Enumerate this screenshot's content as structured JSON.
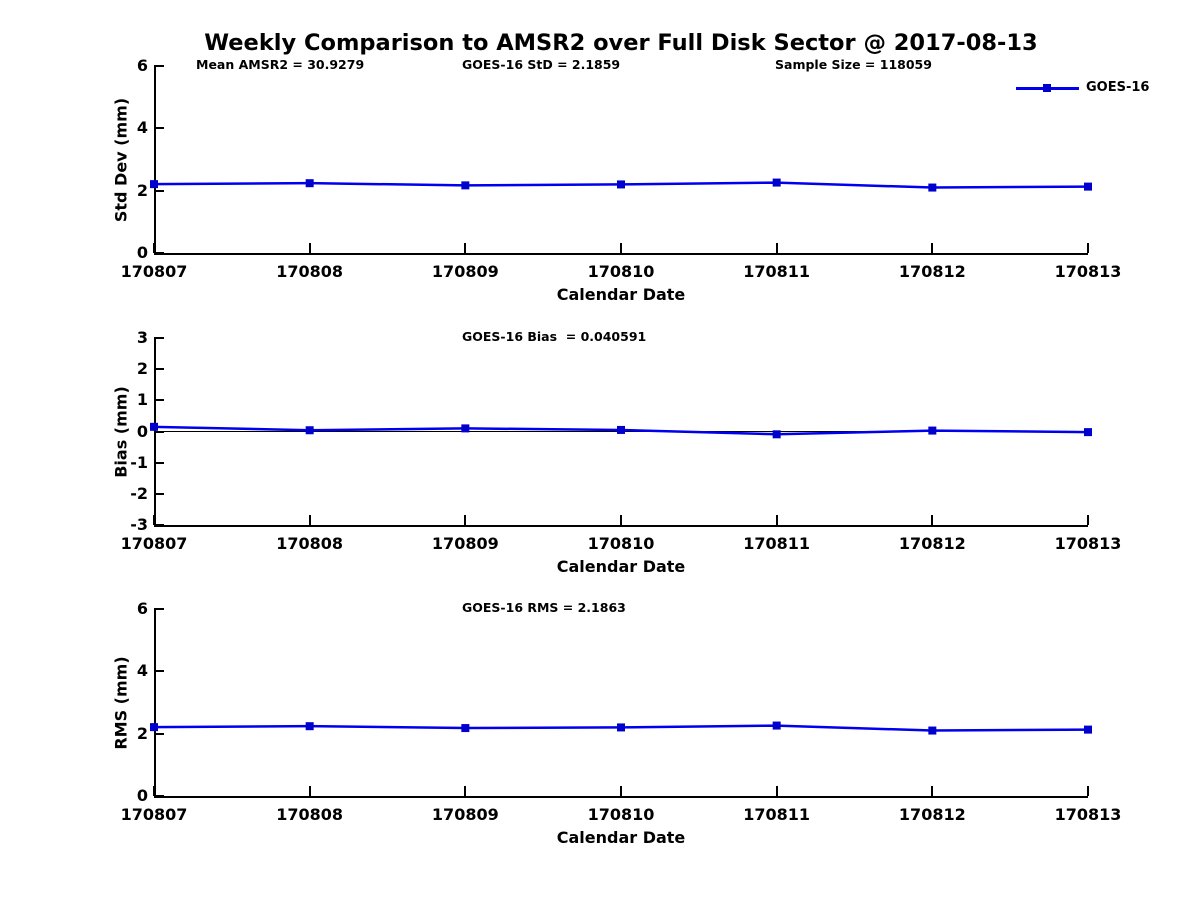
{
  "title": "Weekly Comparison to AMSR2 over Full Disk Sector @ 2017-08-13",
  "colors": {
    "line": "#0000ee",
    "marker": "#0000cc",
    "axis": "#000000",
    "zero_line": "#000000",
    "text": "#000000"
  },
  "chart_data": [
    {
      "id": "std-dev",
      "type": "line",
      "categories": [
        "170807",
        "170808",
        "170809",
        "170810",
        "170811",
        "170812",
        "170813"
      ],
      "series": [
        {
          "name": "GOES-16",
          "values": [
            2.21,
            2.24,
            2.17,
            2.2,
            2.26,
            2.1,
            2.13
          ]
        }
      ],
      "xlabel": "Calendar Date",
      "ylabel": "Std Dev (mm)",
      "ylim": [
        0,
        6
      ],
      "yticks": [
        "0",
        "2",
        "4",
        "6"
      ],
      "grid": false,
      "zero_line": false,
      "legend": {
        "label": "GOES-16",
        "position": "top-right"
      },
      "annotations": [
        {
          "text": "Mean AMSR2 = 30.9279",
          "col": 0
        },
        {
          "text": "GOES-16 StD = 2.1859",
          "col": 1
        },
        {
          "text": "Sample Size = 118059",
          "col": 2
        }
      ]
    },
    {
      "id": "bias",
      "type": "line",
      "categories": [
        "170807",
        "170808",
        "170809",
        "170810",
        "170811",
        "170812",
        "170813"
      ],
      "series": [
        {
          "name": "GOES-16",
          "values": [
            0.15,
            0.04,
            0.1,
            0.05,
            -0.09,
            0.03,
            -0.02
          ]
        }
      ],
      "xlabel": "Calendar Date",
      "ylabel": "Bias (mm)",
      "ylim": [
        -3,
        3
      ],
      "yticks": [
        "-3",
        "-2",
        "-1",
        "0",
        "1",
        "2",
        "3"
      ],
      "grid": false,
      "zero_line": true,
      "annotations": [
        {
          "text": "GOES-16 Bias  = 0.040591",
          "col": 1
        }
      ]
    },
    {
      "id": "rms",
      "type": "line",
      "categories": [
        "170807",
        "170808",
        "170809",
        "170810",
        "170811",
        "170812",
        "170813"
      ],
      "series": [
        {
          "name": "GOES-16",
          "values": [
            2.21,
            2.24,
            2.18,
            2.2,
            2.26,
            2.1,
            2.13
          ]
        }
      ],
      "xlabel": "Calendar Date",
      "ylabel": "RMS (mm)",
      "ylim": [
        0,
        6
      ],
      "yticks": [
        "0",
        "2",
        "4",
        "6"
      ],
      "grid": false,
      "zero_line": false,
      "annotations": [
        {
          "text": "GOES-16 RMS = 2.1863",
          "col": 1
        }
      ]
    }
  ]
}
